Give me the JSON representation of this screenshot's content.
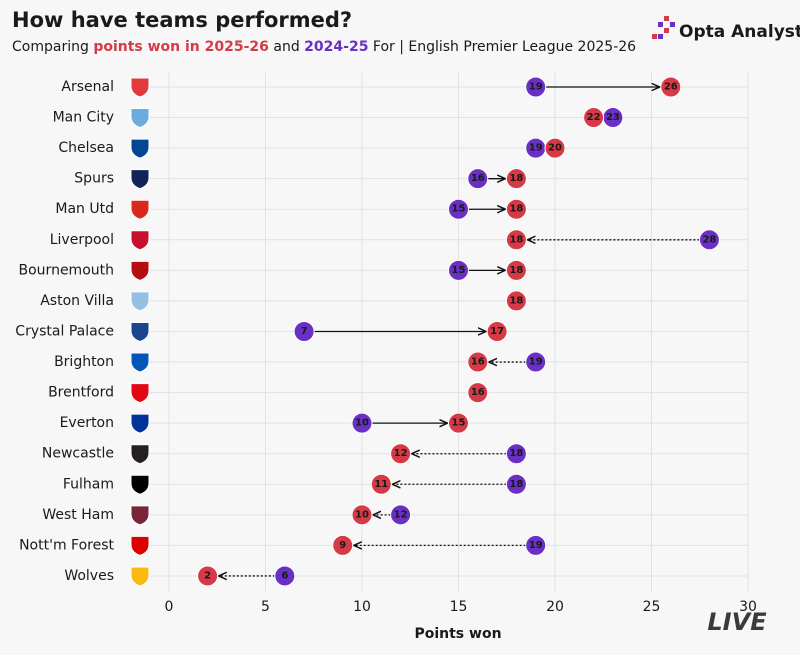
{
  "chart_data": {
    "type": "dumbbell",
    "title": "How have teams performed?",
    "subtitle_parts": [
      "Comparing",
      "and",
      "For | English Premier League 2025-26"
    ],
    "brand": "Opta Analyst",
    "watermark": "LIVE",
    "x_label": "Points won",
    "categories": [
      "Arsenal",
      "Man City",
      "Chelsea",
      "Spurs",
      "Man Utd",
      "Liverpool",
      "Bournemouth",
      "Aston Villa",
      "Crystal Palace",
      "Brighton",
      "Brentford",
      "Everton",
      "Newcastle",
      "Fulham",
      "West Ham",
      "Nott'm Forest",
      "Wolves"
    ],
    "crest_colors": [
      "#e03a3e",
      "#6cabdd",
      "#034694",
      "#132257",
      "#da291c",
      "#c8102e",
      "#b50e12",
      "#95bfe5",
      "#1b458f",
      "#0057b8",
      "#e30613",
      "#003399",
      "#241f20",
      "#000000",
      "#7a263a",
      "#dd0000",
      "#fdb913"
    ],
    "series": [
      {
        "name": "points won in 2025-26",
        "color": "#d63a47",
        "values": [
          26,
          22,
          20,
          18,
          18,
          18,
          18,
          18,
          17,
          16,
          16,
          15,
          12,
          11,
          10,
          9,
          2
        ]
      },
      {
        "name": "2024-25",
        "color": "#6a2fc4",
        "values": [
          19,
          23,
          19,
          16,
          15,
          28,
          15,
          18,
          7,
          19,
          16,
          10,
          18,
          18,
          12,
          19,
          6
        ]
      }
    ],
    "xlim": [
      0,
      30
    ],
    "xticks": [
      0,
      5,
      10,
      15,
      20,
      25,
      30
    ],
    "grid": true
  }
}
